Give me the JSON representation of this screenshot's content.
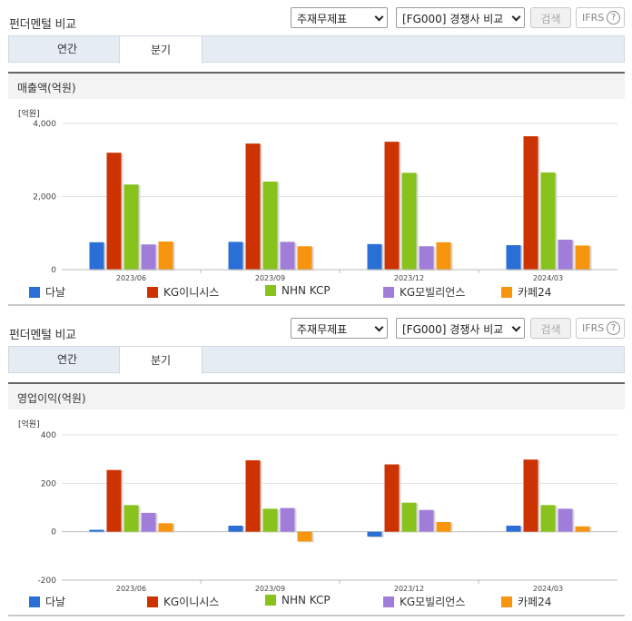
{
  "sections": [
    {
      "title": "펀더멘털 비교",
      "select_statement": "주재무제표",
      "select_compare": "[FG000] 경쟁사 비교",
      "search_label": "검색",
      "ifrs_label": "IFRS",
      "ifrs_help": "?",
      "tabs": [
        "연간",
        "분기"
      ],
      "active_tab": "분기",
      "chart_title": "매출액(억원)",
      "unit": "[억원]"
    },
    {
      "title": "펀더멘털 비교",
      "select_statement": "주재무제표",
      "select_compare": "[FG000] 경쟁사 비교",
      "search_label": "검색",
      "ifrs_label": "IFRS",
      "ifrs_help": "?",
      "tabs": [
        "연간",
        "분기"
      ],
      "active_tab": "분기",
      "chart_title": "영업이익(억원)",
      "unit": "[억원]"
    }
  ],
  "legend": [
    {
      "name": "다날",
      "color": "#2a6fd6"
    },
    {
      "name": "KG이니시스",
      "color": "#cc3300"
    },
    {
      "name": "NHN KCP",
      "color": "#88c21c"
    },
    {
      "name": "KG모빌리언스",
      "color": "#a07dd8"
    },
    {
      "name": "카페24",
      "color": "#f7950e"
    }
  ],
  "chart_data": [
    {
      "type": "bar",
      "title": "매출액(억원)",
      "ylabel": "[억원]",
      "categories": [
        "2023/06",
        "2023/09",
        "2023/12",
        "2024/03"
      ],
      "ylim": [
        0,
        4000
      ],
      "yticks": [
        0,
        2000,
        4000
      ],
      "ytick_labels": [
        "0",
        "2,000",
        "4,000"
      ],
      "series": [
        {
          "name": "다날",
          "values": [
            750,
            760,
            700,
            670
          ]
        },
        {
          "name": "KG이니시스",
          "values": [
            3200,
            3450,
            3500,
            3650
          ]
        },
        {
          "name": "NHN KCP",
          "values": [
            2330,
            2410,
            2650,
            2660
          ]
        },
        {
          "name": "KG모빌리언스",
          "values": [
            690,
            760,
            640,
            820
          ]
        },
        {
          "name": "카페24",
          "values": [
            770,
            640,
            750,
            660
          ]
        }
      ]
    },
    {
      "type": "bar",
      "title": "영업이익(억원)",
      "ylabel": "[억원]",
      "categories": [
        "2023/06",
        "2023/09",
        "2023/12",
        "2024/03"
      ],
      "ylim": [
        -200,
        400
      ],
      "yticks": [
        -200,
        0,
        200,
        400
      ],
      "ytick_labels": [
        "-200",
        "0",
        "200",
        "400"
      ],
      "series": [
        {
          "name": "다날",
          "values": [
            8,
            25,
            -20,
            25
          ]
        },
        {
          "name": "KG이니시스",
          "values": [
            255,
            295,
            278,
            298
          ]
        },
        {
          "name": "NHN KCP",
          "values": [
            110,
            95,
            120,
            110
          ]
        },
        {
          "name": "KG모빌리언스",
          "values": [
            78,
            98,
            90,
            95
          ]
        },
        {
          "name": "카페24",
          "values": [
            35,
            -40,
            40,
            22
          ]
        }
      ]
    }
  ]
}
